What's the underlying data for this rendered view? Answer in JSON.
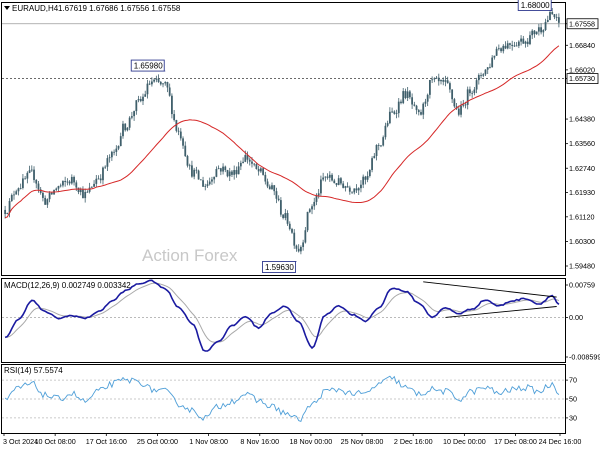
{
  "chart_data": {
    "type": "candlestick",
    "header": {
      "symbol": "EURAUD,H4",
      "ohlc": "1.67619 1.67686 1.67556 1.67558"
    },
    "watermark": "Action Forex",
    "colors": {
      "candle": "#3f5f6b",
      "ma": "#d62828",
      "macd": "#1a1aa0",
      "signal": "#a9a9a9",
      "rsi": "#4f9fd8",
      "price_line": "#9a9a9a",
      "level_line": "#555555",
      "trend_line": "#000000"
    },
    "price_panel": {
      "ylim": [
        1.5918,
        1.6825
      ],
      "ticks": [
        "1.67558",
        "1.66840",
        "1.66020",
        "1.65730",
        "1.64380",
        "1.63560",
        "1.62740",
        "1.61930",
        "1.61120",
        "1.60300",
        "1.59480"
      ],
      "tick_values": [
        1.67558,
        1.6684,
        1.6602,
        1.6573,
        1.6438,
        1.6356,
        1.6274,
        1.6193,
        1.6112,
        1.603,
        1.5948
      ],
      "current_price": 1.67558,
      "level": 1.6573,
      "annotations": [
        {
          "label": "1.68000",
          "price": 1.68
        },
        {
          "label": "1.65980",
          "price": 1.6598
        },
        {
          "label": "1.59630",
          "price": 1.5963
        }
      ],
      "anchors": [
        [
          0,
          1.6135
        ],
        [
          6,
          1.6215
        ],
        [
          12,
          1.6255
        ],
        [
          18,
          1.6165
        ],
        [
          24,
          1.6212
        ],
        [
          30,
          1.6235
        ],
        [
          36,
          1.6185
        ],
        [
          42,
          1.6245
        ],
        [
          48,
          1.6315
        ],
        [
          54,
          1.6415
        ],
        [
          60,
          1.6492
        ],
        [
          66,
          1.6562
        ],
        [
          72,
          1.6548
        ],
        [
          78,
          1.6395
        ],
        [
          84,
          1.6262
        ],
        [
          90,
          1.6218
        ],
        [
          96,
          1.6275
        ],
        [
          102,
          1.6255
        ],
        [
          108,
          1.6312
        ],
        [
          114,
          1.6262
        ],
        [
          120,
          1.6202
        ],
        [
          126,
          1.6108
        ],
        [
          132,
          1.6005
        ],
        [
          138,
          1.6152
        ],
        [
          144,
          1.6245
        ],
        [
          150,
          1.6225
        ],
        [
          156,
          1.6208
        ],
        [
          162,
          1.6232
        ],
        [
          168,
          1.6352
        ],
        [
          174,
          1.6458
        ],
        [
          180,
          1.6522
        ],
        [
          186,
          1.6448
        ],
        [
          192,
          1.6562
        ],
        [
          198,
          1.6552
        ],
        [
          204,
          1.6462
        ],
        [
          210,
          1.6542
        ],
        [
          216,
          1.6602
        ],
        [
          222,
          1.6678
        ],
        [
          228,
          1.6692
        ],
        [
          234,
          1.6702
        ],
        [
          240,
          1.6738
        ],
        [
          246,
          1.6785
        ],
        [
          249,
          1.6756
        ]
      ]
    },
    "macd_panel": {
      "label": "MACD(12,26,9) 0.002749 0.003342",
      "ylim": [
        -0.0094,
        0.0081
      ],
      "ticks": [
        "0.00759",
        "0.00",
        "-0.008599"
      ],
      "tick_values": [
        0.00759,
        0.0,
        -0.008599
      ],
      "ref_level": 0.0,
      "anchors": [
        [
          0,
          -0.0042
        ],
        [
          6,
          -0.0005
        ],
        [
          12,
          0.0036
        ],
        [
          18,
          0.0012
        ],
        [
          24,
          -0.0002
        ],
        [
          30,
          0.0004
        ],
        [
          36,
          -0.0002
        ],
        [
          42,
          0.0012
        ],
        [
          48,
          0.0034
        ],
        [
          54,
          0.0056
        ],
        [
          60,
          0.0071
        ],
        [
          66,
          0.0077
        ],
        [
          72,
          0.006
        ],
        [
          78,
          0.0022
        ],
        [
          84,
          -0.0012
        ],
        [
          90,
          -0.0072
        ],
        [
          96,
          -0.005
        ],
        [
          102,
          -0.0018
        ],
        [
          108,
          0.0002
        ],
        [
          114,
          -0.0022
        ],
        [
          120,
          0.001
        ],
        [
          126,
          0.0024
        ],
        [
          132,
          -0.001
        ],
        [
          138,
          -0.0064
        ],
        [
          144,
          0.0005
        ],
        [
          150,
          0.0025
        ],
        [
          156,
          0.0006
        ],
        [
          162,
          -0.0008
        ],
        [
          168,
          0.002
        ],
        [
          174,
          0.0062
        ],
        [
          180,
          0.0055
        ],
        [
          186,
          0.003
        ],
        [
          192,
          0.0001
        ],
        [
          198,
          0.002
        ],
        [
          204,
          0.0008
        ],
        [
          210,
          0.0018
        ],
        [
          216,
          0.0037
        ],
        [
          222,
          0.0024
        ],
        [
          228,
          0.0035
        ],
        [
          234,
          0.004
        ],
        [
          240,
          0.0028
        ],
        [
          246,
          0.0046
        ],
        [
          249,
          0.0027
        ]
      ]
    },
    "rsi_panel": {
      "label": "RSI(14) 57.5574",
      "ylim": [
        14,
        86
      ],
      "ticks": [
        "70",
        "50",
        "30"
      ],
      "tick_values": [
        70,
        50,
        30
      ],
      "anchors": [
        [
          0,
          48
        ],
        [
          6,
          62
        ],
        [
          12,
          66
        ],
        [
          18,
          54
        ],
        [
          24,
          50
        ],
        [
          30,
          56
        ],
        [
          36,
          47
        ],
        [
          42,
          58
        ],
        [
          48,
          66
        ],
        [
          54,
          70
        ],
        [
          60,
          69
        ],
        [
          66,
          60
        ],
        [
          72,
          58
        ],
        [
          78,
          45
        ],
        [
          84,
          38
        ],
        [
          90,
          30
        ],
        [
          96,
          42
        ],
        [
          102,
          48
        ],
        [
          108,
          55
        ],
        [
          114,
          48
        ],
        [
          120,
          42
        ],
        [
          126,
          35
        ],
        [
          132,
          28
        ],
        [
          138,
          44
        ],
        [
          144,
          58
        ],
        [
          150,
          60
        ],
        [
          156,
          56
        ],
        [
          162,
          55
        ],
        [
          168,
          66
        ],
        [
          174,
          72
        ],
        [
          180,
          62
        ],
        [
          186,
          55
        ],
        [
          192,
          60
        ],
        [
          198,
          58
        ],
        [
          204,
          50
        ],
        [
          210,
          58
        ],
        [
          216,
          62
        ],
        [
          222,
          56
        ],
        [
          228,
          60
        ],
        [
          234,
          62
        ],
        [
          240,
          58
        ],
        [
          246,
          66
        ],
        [
          249,
          57.6
        ]
      ]
    },
    "x_axis": {
      "bars": 250,
      "labels": [
        "3 Oct 2024",
        "10 Oct 08:00",
        "17 Oct 16:00",
        "25 Oct 00:00",
        "1 Nov 08:00",
        "8 Nov 16:00",
        "18 Nov 00:00",
        "25 Nov 08:00",
        "2 Dec 16:00",
        "10 Dec 00:00",
        "17 Dec 08:00",
        "24 Dec 16:00"
      ],
      "label_positions": [
        0,
        23,
        46,
        69,
        92,
        115,
        138,
        161,
        184,
        207,
        230,
        250
      ]
    }
  }
}
